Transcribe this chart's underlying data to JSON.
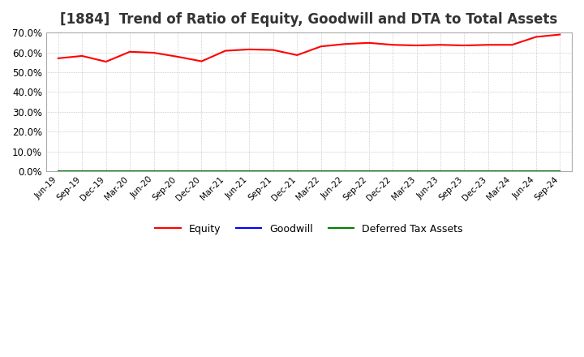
{
  "title": "[1884]  Trend of Ratio of Equity, Goodwill and DTA to Total Assets",
  "title_fontsize": 12,
  "background_color": "#ffffff",
  "plot_bg_color": "#ffffff",
  "grid_color": "#aaaaaa",
  "xlabels": [
    "Jun-19",
    "Sep-19",
    "Dec-19",
    "Mar-20",
    "Jun-20",
    "Sep-20",
    "Dec-20",
    "Mar-21",
    "Jun-21",
    "Sep-21",
    "Dec-21",
    "Mar-22",
    "Jun-22",
    "Sep-22",
    "Dec-22",
    "Mar-23",
    "Jun-23",
    "Sep-23",
    "Dec-23",
    "Mar-24",
    "Jun-24",
    "Sep-24"
  ],
  "equity": [
    57.0,
    58.2,
    55.3,
    60.3,
    59.8,
    57.8,
    55.5,
    60.8,
    61.5,
    61.2,
    58.6,
    63.0,
    64.2,
    64.8,
    63.8,
    63.5,
    63.8,
    63.5,
    63.8,
    63.8,
    67.8,
    69.0
  ],
  "goodwill": [
    0.0,
    0.0,
    0.0,
    0.0,
    0.0,
    0.0,
    0.0,
    0.0,
    0.0,
    0.0,
    0.0,
    0.0,
    0.0,
    0.0,
    0.0,
    0.0,
    0.0,
    0.0,
    0.0,
    0.0,
    0.0,
    0.0
  ],
  "dta": [
    0.0,
    0.0,
    0.0,
    0.0,
    0.0,
    0.0,
    0.0,
    0.0,
    0.0,
    0.0,
    0.0,
    0.0,
    0.0,
    0.0,
    0.0,
    0.0,
    0.0,
    0.0,
    0.0,
    0.0,
    0.0,
    0.0
  ],
  "equity_color": "#ff0000",
  "goodwill_color": "#0000ff",
  "dta_color": "#008000",
  "ylim": [
    0.0,
    70.0
  ],
  "yticks": [
    0.0,
    10.0,
    20.0,
    30.0,
    40.0,
    50.0,
    60.0,
    70.0
  ],
  "legend_labels": [
    "Equity",
    "Goodwill",
    "Deferred Tax Assets"
  ],
  "line_width": 1.5
}
